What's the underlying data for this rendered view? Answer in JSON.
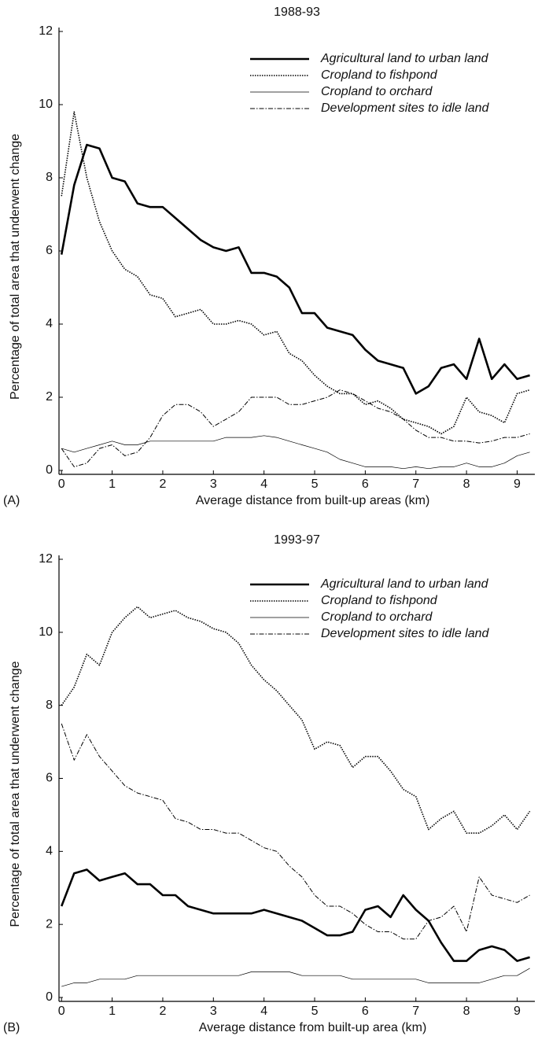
{
  "chart_data": [
    {
      "type": "line",
      "title": "1988-93",
      "panel_label": "(A)",
      "x_label": "Average distance from built-up areas (km)",
      "y_label": "Percentage of total area that underwent change",
      "xlim": [
        -0.05,
        9.35
      ],
      "ylim": [
        0,
        12
      ],
      "xticks": [
        0,
        1,
        2,
        3,
        4,
        5,
        6,
        7,
        8,
        9
      ],
      "yticks": [
        0,
        2,
        4,
        6,
        8,
        10,
        12
      ],
      "legend": "upper right",
      "x": [
        0,
        0.25,
        0.5,
        0.75,
        1,
        1.25,
        1.5,
        1.75,
        2,
        2.25,
        2.5,
        2.75,
        3,
        3.25,
        3.5,
        3.75,
        4,
        4.25,
        4.5,
        4.75,
        5,
        5.25,
        5.5,
        5.75,
        6,
        6.25,
        6.5,
        6.75,
        7,
        7.25,
        7.5,
        7.75,
        8,
        8.25,
        8.5,
        8.75,
        9,
        9.25
      ],
      "series": [
        {
          "name": "Agricultural land to urban land",
          "color": "#000000",
          "style": "thick",
          "values": [
            5.9,
            7.8,
            8.9,
            8.8,
            8.0,
            7.9,
            7.3,
            7.2,
            7.2,
            6.9,
            6.6,
            6.3,
            6.1,
            6.0,
            6.1,
            5.4,
            5.4,
            5.3,
            5.0,
            4.3,
            4.3,
            3.9,
            3.8,
            3.7,
            3.3,
            3.0,
            2.9,
            2.8,
            2.1,
            2.3,
            2.8,
            2.9,
            2.5,
            3.6,
            2.5,
            2.9,
            2.5,
            2.6
          ]
        },
        {
          "name": "Cropland to fishpond",
          "color": "#000000",
          "style": "dotted",
          "values": [
            7.5,
            9.8,
            8.0,
            6.8,
            6.0,
            5.5,
            5.3,
            4.8,
            4.7,
            4.2,
            4.3,
            4.4,
            4.0,
            4.0,
            4.1,
            4.0,
            3.7,
            3.8,
            3.2,
            3.0,
            2.6,
            2.3,
            2.1,
            2.1,
            1.8,
            1.9,
            1.7,
            1.4,
            1.3,
            1.2,
            1.0,
            1.2,
            2.0,
            1.6,
            1.5,
            1.3,
            2.1,
            2.2
          ]
        },
        {
          "name": "Cropland to orchard",
          "color": "#000000",
          "style": "thin",
          "values": [
            0.6,
            0.5,
            0.6,
            0.7,
            0.8,
            0.7,
            0.7,
            0.8,
            0.8,
            0.8,
            0.8,
            0.8,
            0.8,
            0.9,
            0.9,
            0.9,
            0.95,
            0.9,
            0.8,
            0.7,
            0.6,
            0.5,
            0.3,
            0.2,
            0.1,
            0.1,
            0.1,
            0.05,
            0.1,
            0.05,
            0.1,
            0.1,
            0.2,
            0.1,
            0.1,
            0.2,
            0.4,
            0.5
          ]
        },
        {
          "name": "Development sites to idle land",
          "color": "#000000",
          "style": "dashdot",
          "values": [
            0.6,
            0.1,
            0.2,
            0.6,
            0.7,
            0.4,
            0.5,
            0.9,
            1.5,
            1.8,
            1.8,
            1.6,
            1.2,
            1.4,
            1.6,
            2.0,
            2.0,
            2.0,
            1.8,
            1.8,
            1.9,
            2.0,
            2.2,
            2.1,
            1.9,
            1.7,
            1.6,
            1.4,
            1.1,
            0.9,
            0.9,
            0.8,
            0.8,
            0.75,
            0.8,
            0.9,
            0.9,
            1.0
          ]
        }
      ]
    },
    {
      "type": "line",
      "title": "1993-97",
      "panel_label": "(B)",
      "x_label": "Average distance from built-up area (km)",
      "y_label": "Percentage of total area that underwent change",
      "xlim": [
        -0.05,
        9.35
      ],
      "ylim": [
        0,
        12
      ],
      "xticks": [
        0,
        1,
        2,
        3,
        4,
        5,
        6,
        7,
        8,
        9
      ],
      "yticks": [
        0,
        2,
        4,
        6,
        8,
        10,
        12
      ],
      "legend": "upper right",
      "x": [
        0,
        0.25,
        0.5,
        0.75,
        1,
        1.25,
        1.5,
        1.75,
        2,
        2.25,
        2.5,
        2.75,
        3,
        3.25,
        3.5,
        3.75,
        4,
        4.25,
        4.5,
        4.75,
        5,
        5.25,
        5.5,
        5.75,
        6,
        6.25,
        6.5,
        6.75,
        7,
        7.25,
        7.5,
        7.75,
        8,
        8.25,
        8.5,
        8.75,
        9,
        9.25
      ],
      "series": [
        {
          "name": "Agricultural land to urban land",
          "color": "#000000",
          "style": "thick",
          "values": [
            2.5,
            3.4,
            3.5,
            3.2,
            3.3,
            3.4,
            3.1,
            3.1,
            2.8,
            2.8,
            2.5,
            2.4,
            2.3,
            2.3,
            2.3,
            2.3,
            2.4,
            2.3,
            2.2,
            2.1,
            1.9,
            1.7,
            1.7,
            1.8,
            2.4,
            2.5,
            2.2,
            2.8,
            2.4,
            2.1,
            1.5,
            1.0,
            1.0,
            1.3,
            1.4,
            1.3,
            1.0,
            1.1
          ]
        },
        {
          "name": "Cropland to fishpond",
          "color": "#000000",
          "style": "dotted",
          "values": [
            8.0,
            8.5,
            9.4,
            9.1,
            10.0,
            10.4,
            10.7,
            10.4,
            10.5,
            10.6,
            10.4,
            10.3,
            10.1,
            10.0,
            9.7,
            9.1,
            8.7,
            8.4,
            8.0,
            7.6,
            6.8,
            7.0,
            6.9,
            6.3,
            6.6,
            6.6,
            6.2,
            5.7,
            5.5,
            4.6,
            4.9,
            5.1,
            4.5,
            4.5,
            4.7,
            5.0,
            4.6,
            5.1
          ]
        },
        {
          "name": "Cropland to orchard",
          "color": "#000000",
          "style": "thin",
          "values": [
            0.3,
            0.4,
            0.4,
            0.5,
            0.5,
            0.5,
            0.6,
            0.6,
            0.6,
            0.6,
            0.6,
            0.6,
            0.6,
            0.6,
            0.6,
            0.7,
            0.7,
            0.7,
            0.7,
            0.6,
            0.6,
            0.6,
            0.6,
            0.5,
            0.5,
            0.5,
            0.5,
            0.5,
            0.5,
            0.4,
            0.4,
            0.4,
            0.4,
            0.4,
            0.5,
            0.6,
            0.6,
            0.8
          ]
        },
        {
          "name": "Development sites to idle land",
          "color": "#000000",
          "style": "dashdot",
          "values": [
            7.5,
            6.5,
            7.2,
            6.6,
            6.2,
            5.8,
            5.6,
            5.5,
            5.4,
            4.9,
            4.8,
            4.6,
            4.6,
            4.5,
            4.5,
            4.3,
            4.1,
            4.0,
            3.6,
            3.3,
            2.8,
            2.5,
            2.5,
            2.3,
            2.0,
            1.8,
            1.8,
            1.6,
            1.6,
            2.1,
            2.2,
            2.5,
            1.8,
            3.3,
            2.8,
            2.7,
            2.6,
            2.8
          ]
        }
      ]
    }
  ]
}
